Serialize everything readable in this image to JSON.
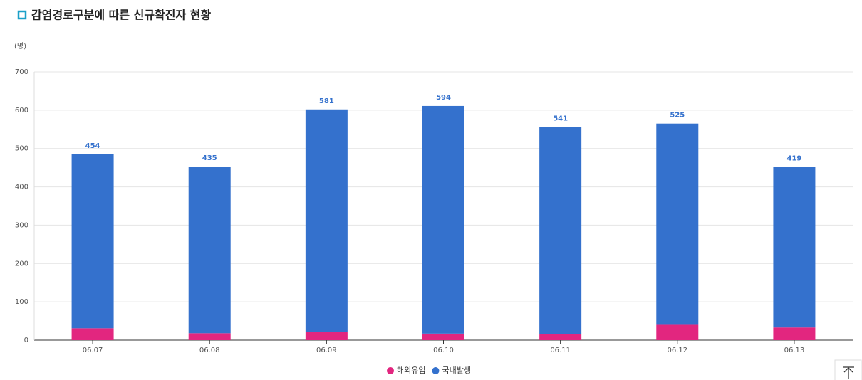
{
  "chart_data": {
    "type": "stacked_bar",
    "title": "감염경로구분에 따른 신규확진자 현황",
    "y_axis_label": "(명)",
    "categories": [
      "06.07",
      "06.08",
      "06.09",
      "06.10",
      "06.11",
      "06.12",
      "06.13"
    ],
    "series": [
      {
        "name": "해외유입",
        "color": "#e2267f",
        "values": [
          31,
          18,
          21,
          17,
          15,
          40,
          33
        ]
      },
      {
        "name": "국내발생",
        "color": "#3471cd",
        "values": [
          454,
          435,
          581,
          594,
          541,
          525,
          419
        ]
      }
    ],
    "ylim": [
      0,
      700
    ],
    "yticks": [
      0,
      100,
      200,
      300,
      400,
      500,
      600,
      700
    ],
    "grid": true,
    "legend": "bottom"
  }
}
